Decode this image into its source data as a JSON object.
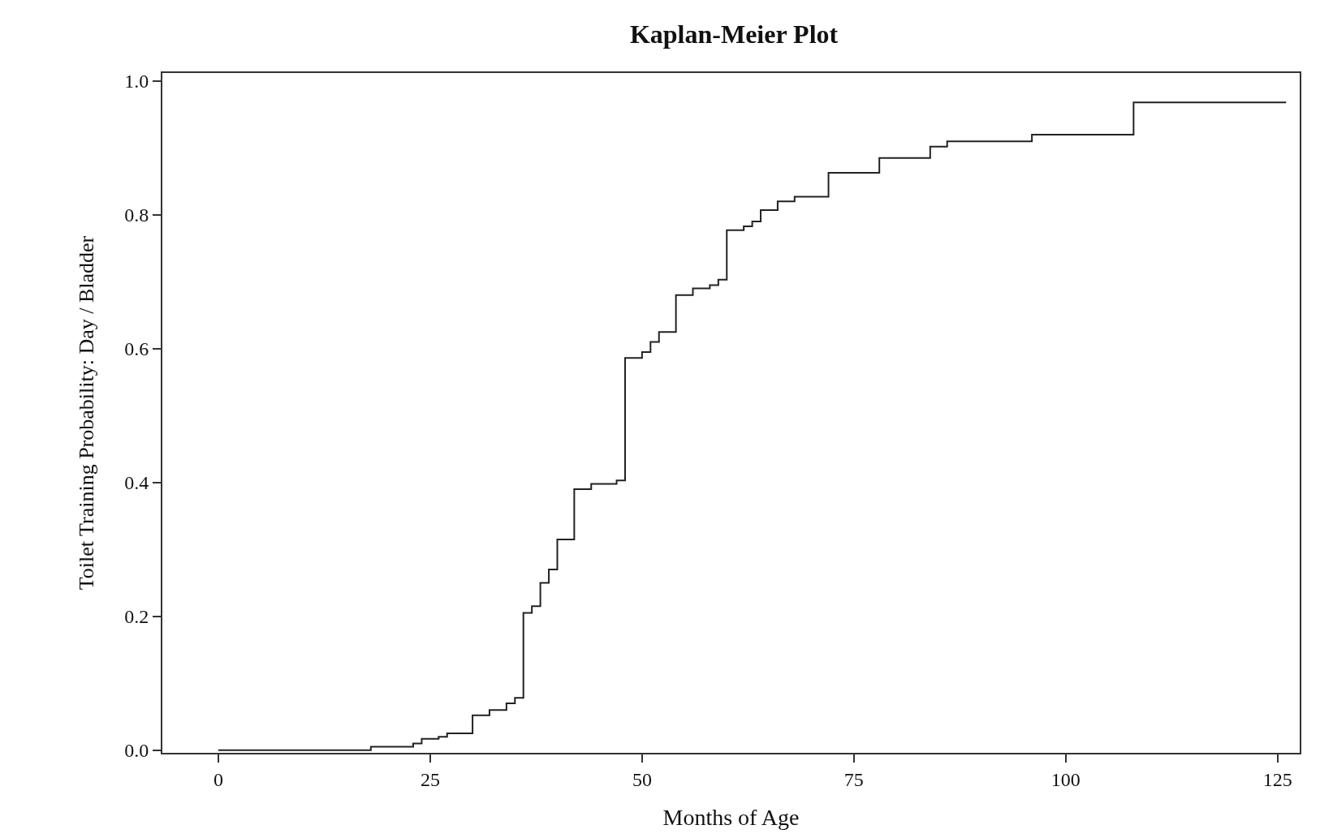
{
  "chart_data": {
    "type": "step",
    "title": "Kaplan-Meier Plot",
    "xlabel": "Months of Age",
    "ylabel": "Toilet Training Probability: Day / Bladder",
    "series": [
      {
        "color": "#222222",
        "x": [
          0,
          18,
          23,
          24,
          26,
          27,
          30,
          32,
          34,
          35,
          36,
          37,
          38,
          39,
          40,
          42,
          44,
          47,
          48,
          50,
          51,
          52,
          54,
          56,
          58,
          59,
          60,
          62,
          63,
          64,
          66,
          68,
          72,
          78,
          84,
          86,
          96,
          108,
          126
        ],
        "values": [
          0.0,
          0.005,
          0.01,
          0.017,
          0.02,
          0.025,
          0.052,
          0.06,
          0.07,
          0.078,
          0.205,
          0.215,
          0.25,
          0.27,
          0.315,
          0.39,
          0.398,
          0.403,
          0.586,
          0.595,
          0.61,
          0.625,
          0.68,
          0.69,
          0.695,
          0.703,
          0.777,
          0.783,
          0.79,
          0.807,
          0.82,
          0.827,
          0.863,
          0.885,
          0.902,
          0.91,
          0.92,
          0.968,
          0.968
        ]
      }
    ],
    "xlim": [
      -6.6,
      127.6
    ],
    "xticks": [
      0,
      25,
      50,
      75,
      100,
      125
    ],
    "ylim": [
      -0.004,
      1.012
    ],
    "yticks": [
      {
        "value": 0,
        "label": "0.0"
      },
      {
        "value": 0.2,
        "label": "0.2"
      },
      {
        "value": 0.4,
        "label": "0.4"
      },
      {
        "value": 0.6,
        "label": "0.6"
      },
      {
        "value": 0.8,
        "label": "0.8"
      },
      {
        "value": 1,
        "label": "1.0"
      }
    ],
    "grid": false,
    "line_style": "solid",
    "marker": "none"
  }
}
